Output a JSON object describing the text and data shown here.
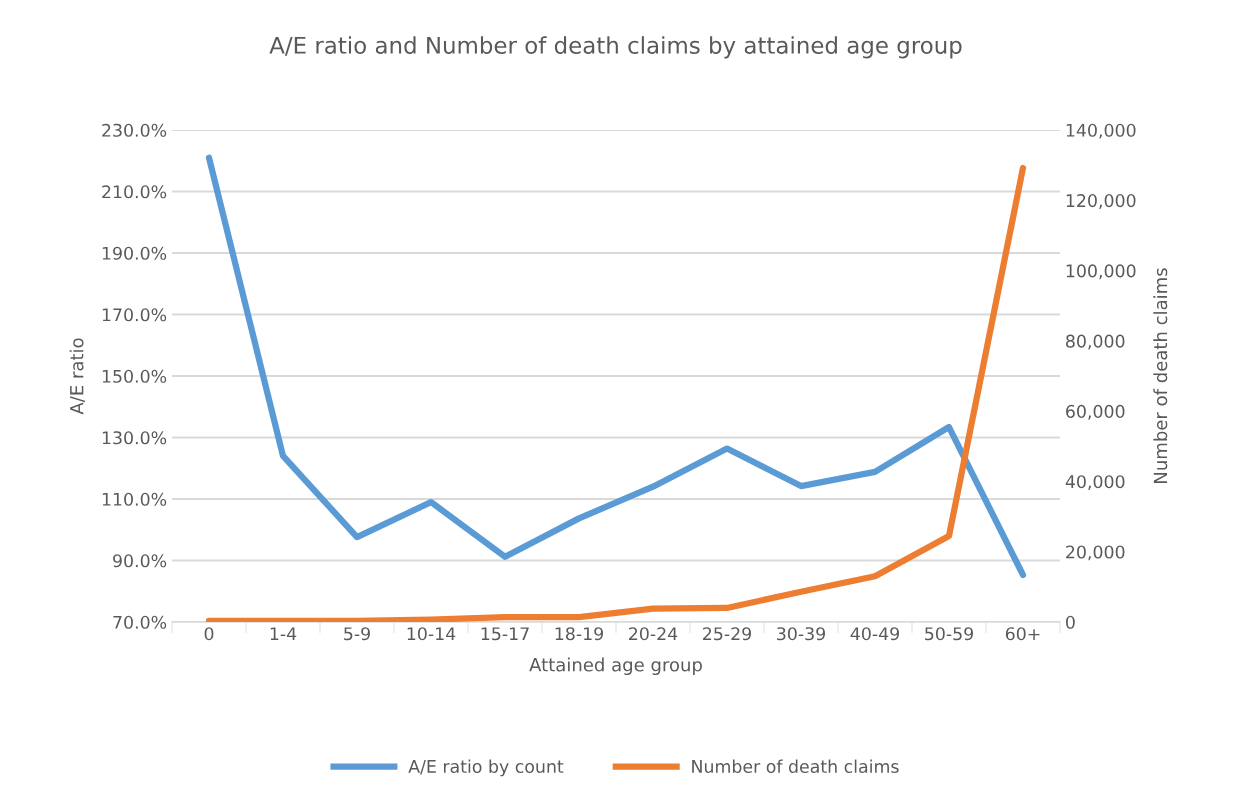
{
  "chart_data": {
    "type": "line",
    "title": "A/E ratio and Number of death claims by attained age group",
    "xlabel": "Attained age group",
    "ylabel": "A/E ratio",
    "y2label": "Number of death claims",
    "categories": [
      "0",
      "1-4",
      "5-9",
      "10-14",
      "15-17",
      "18-19",
      "20-24",
      "25-29",
      "30-39",
      "40-49",
      "50-59",
      "60+"
    ],
    "series": [
      {
        "name": "A/E ratio by count",
        "color": "#5b9bd5",
        "values": [
          221,
          124,
          97.6,
          109,
          91.2,
          103.7,
          114,
          126.4,
          114.2,
          118.8,
          133.4,
          85.3
        ]
      },
      {
        "name": "Number of death claims",
        "color": "#ed7d31",
        "axis": "y2",
        "values": [
          300,
          300,
          300,
          700,
          1400,
          1400,
          3800,
          4000,
          8600,
          13000,
          24500,
          129200
        ]
      }
    ],
    "ylim": [
      70,
      230
    ],
    "yticks": [
      {
        "value": 70,
        "label": "70.0%"
      },
      {
        "value": 90,
        "label": "90.0%"
      },
      {
        "value": 110,
        "label": "110.0%"
      },
      {
        "value": 130,
        "label": "130.0%"
      },
      {
        "value": 150,
        "label": "150.0%"
      },
      {
        "value": 170,
        "label": "170.0%"
      },
      {
        "value": 190,
        "label": "190.0%"
      },
      {
        "value": 210,
        "label": "210.0%"
      },
      {
        "value": 230,
        "label": "230.0%"
      }
    ],
    "y2lim": [
      0,
      140000
    ],
    "y2ticks": [
      {
        "value": 0,
        "label": "0"
      },
      {
        "value": 20000,
        "label": "20,000"
      },
      {
        "value": 40000,
        "label": "40,000"
      },
      {
        "value": 60000,
        "label": "60,000"
      },
      {
        "value": 80000,
        "label": "80,000"
      },
      {
        "value": 100000,
        "label": "100,000"
      },
      {
        "value": 120000,
        "label": "120,000"
      },
      {
        "value": 140000,
        "label": "140,000"
      }
    ],
    "grid": "y",
    "legend": "bottom",
    "marker": "none",
    "line_style": "solid"
  }
}
